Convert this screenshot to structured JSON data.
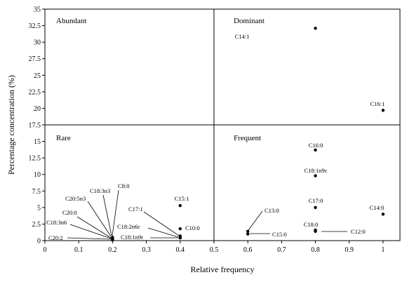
{
  "chart_data": {
    "type": "scatter",
    "title": "",
    "xlabel": "Relative frequency",
    "ylabel": "Percentage concentration (%)",
    "xlim": [
      0,
      1.05
    ],
    "ylim": [
      0,
      35
    ],
    "xticks": [
      "0",
      "0.1",
      "0.2",
      "0.3",
      "0.4",
      "0.5",
      "0.6",
      "0.7",
      "0.8",
      "0.9",
      "1"
    ],
    "yticks": [
      "0",
      "2.5",
      "5",
      "7.5",
      "10",
      "12.5",
      "15",
      "17.5",
      "20",
      "22.5",
      "25",
      "27.5",
      "30",
      "32.5",
      "35"
    ],
    "divider": {
      "x": 0.5,
      "y": 17.5
    },
    "quadrants": {
      "top_left": "Abundant",
      "top_right": "Dominant",
      "bottom_left": "Rare",
      "bottom_right": "Frequent"
    },
    "grid": false,
    "points": [
      {
        "label": "C14:1",
        "x": 0.8,
        "y": 32.1
      },
      {
        "label": "C16:1",
        "x": 1.0,
        "y": 19.7
      },
      {
        "label": "C16:0",
        "x": 0.8,
        "y": 13.7
      },
      {
        "label": "C18:1n9c",
        "x": 0.8,
        "y": 9.8
      },
      {
        "label": "C17:0",
        "x": 0.8,
        "y": 5.0
      },
      {
        "label": "C14:0",
        "x": 1.0,
        "y": 4.0
      },
      {
        "label": "C18:0",
        "x": 0.8,
        "y": 1.6
      },
      {
        "label": "C12:0",
        "x": 0.8,
        "y": 1.4
      },
      {
        "label": "C13:0",
        "x": 0.6,
        "y": 1.4
      },
      {
        "label": "C15:0",
        "x": 0.6,
        "y": 1.0
      },
      {
        "label": "C15:1",
        "x": 0.4,
        "y": 5.3
      },
      {
        "label": "C10:0",
        "x": 0.4,
        "y": 1.8
      },
      {
        "label": "C17:1",
        "x": 0.4,
        "y": 0.7
      },
      {
        "label": "C18:2n6c",
        "x": 0.4,
        "y": 0.5
      },
      {
        "label": "C18:1n9t",
        "x": 0.4,
        "y": 0.4
      },
      {
        "label": "C8:0",
        "x": 0.2,
        "y": 0.5
      },
      {
        "label": "C18:3n3",
        "x": 0.2,
        "y": 0.4
      },
      {
        "label": "C20:5n3",
        "x": 0.2,
        "y": 0.35
      },
      {
        "label": "C20:0",
        "x": 0.2,
        "y": 0.3
      },
      {
        "label": "C18:3n6",
        "x": 0.2,
        "y": 0.2
      },
      {
        "label": "C20:2",
        "x": 0.2,
        "y": 0.1
      }
    ]
  }
}
